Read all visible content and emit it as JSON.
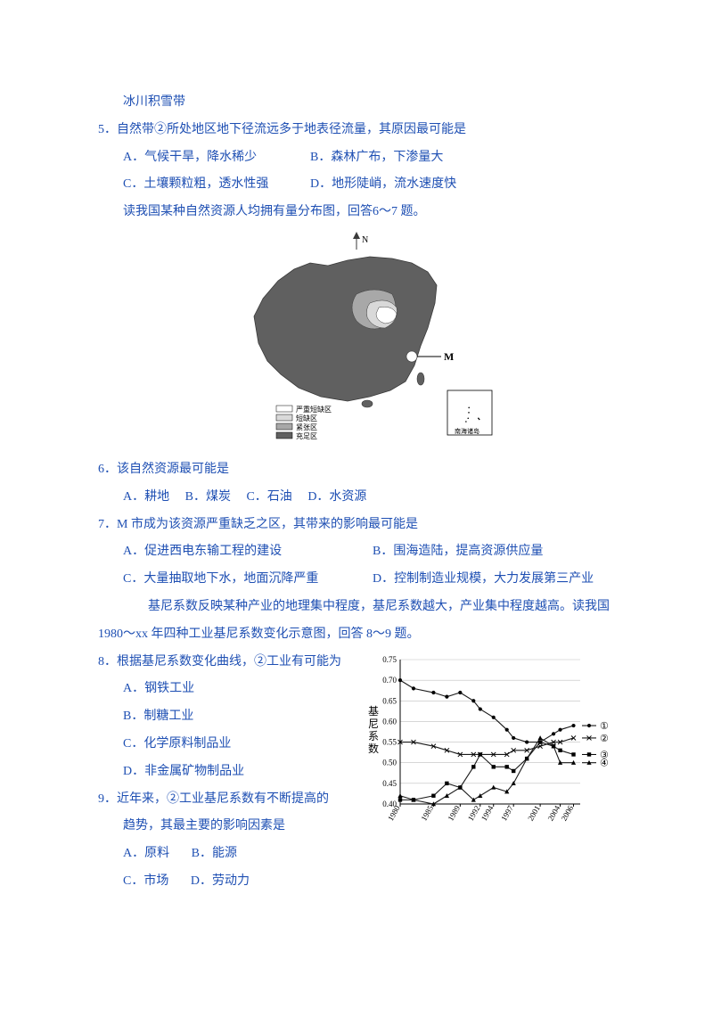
{
  "header_line": "冰川积雪带",
  "q5": {
    "stem": "5．自然带②所处地区地下径流远多于地表径流量，其原因最可能是",
    "optA": "A．气候干旱，降水稀少",
    "optB": "B．森林广布，下渗量大",
    "optC": "C．土壤颗粒粗，透水性强",
    "optD": "D．地形陡峭，流水速度快"
  },
  "intro67": "读我国某种自然资源人均拥有量分布图，回答6～7 题。",
  "map": {
    "compass": "N",
    "label_M": "M",
    "legend": [
      "严重短缺区",
      "短缺区",
      "紧张区",
      "充足区"
    ],
    "inset_label": "南海诸岛",
    "legend_fills": [
      "#ffffff",
      "#d9d9d9",
      "#a8a8a8",
      "#606060"
    ],
    "outline": "#3a3a3a"
  },
  "q6": {
    "stem": "6．该自然资源最可能是",
    "optA": "A．耕地",
    "optB": "B．煤炭",
    "optC": "C．石油",
    "optD": "D．水资源"
  },
  "q7": {
    "stem": "7．M 市成为该资源严重缺乏之区，其带来的影响最可能是",
    "optA": "A．促进西电东输工程的建设",
    "optB": "B．围海造陆，提高资源供应量",
    "optC": "C．大量抽取地下水，地面沉降严重",
    "optD": "D．控制制造业规模，大力发展第三产业"
  },
  "intro89_l1": "基尼系数反映某种产业的地理集中程度，基尼系数越大，产业集中程度越高。读我国",
  "intro89_l2": "1980～xx 年四种工业基尼系数变化示意图，回答 8～9 题。",
  "q8": {
    "stem": "8．根据基尼系数变化曲线，②工业有可能为",
    "optA": "A．钢铁工业",
    "optB": "B．制糖工业",
    "optC": "C．化学原料制品业",
    "optD": "D．非金属矿物制品业"
  },
  "q9": {
    "stem": "9．近年来，②工业基尼系数有不断提高的",
    "sub": "趋势，其最主要的影响因素是",
    "optA": "A．原料",
    "optB": "B．能源",
    "optC": "C．市场",
    "optD": "D．劳动力"
  },
  "chart": {
    "ylabel": "基尼系数",
    "yticks": [
      0.4,
      0.45,
      0.5,
      0.55,
      0.6,
      0.65,
      0.7,
      0.75
    ],
    "xticks": [
      1980,
      1985,
      1989,
      1992,
      1994,
      1997,
      2001,
      2004,
      2006
    ],
    "series_labels": [
      "①",
      "②",
      "③",
      "④"
    ],
    "markers": [
      "●",
      "×",
      "■",
      "▲"
    ],
    "colors": {
      "axis": "#000000",
      "grid": "#bfbfbf",
      "line": "#1a1a1a"
    },
    "series": {
      "s1": [
        [
          1980,
          0.7
        ],
        [
          1982,
          0.68
        ],
        [
          1985,
          0.67
        ],
        [
          1987,
          0.66
        ],
        [
          1989,
          0.67
        ],
        [
          1991,
          0.65
        ],
        [
          1992,
          0.63
        ],
        [
          1994,
          0.61
        ],
        [
          1996,
          0.58
        ],
        [
          1997,
          0.56
        ],
        [
          1999,
          0.55
        ],
        [
          2001,
          0.55
        ],
        [
          2003,
          0.57
        ],
        [
          2004,
          0.58
        ],
        [
          2006,
          0.59
        ]
      ],
      "s2": [
        [
          1980,
          0.55
        ],
        [
          1982,
          0.55
        ],
        [
          1985,
          0.54
        ],
        [
          1987,
          0.53
        ],
        [
          1989,
          0.52
        ],
        [
          1991,
          0.52
        ],
        [
          1992,
          0.52
        ],
        [
          1994,
          0.52
        ],
        [
          1996,
          0.52
        ],
        [
          1997,
          0.53
        ],
        [
          1999,
          0.53
        ],
        [
          2001,
          0.54
        ],
        [
          2003,
          0.55
        ],
        [
          2004,
          0.55
        ],
        [
          2006,
          0.56
        ]
      ],
      "s3": [
        [
          1980,
          0.41
        ],
        [
          1982,
          0.41
        ],
        [
          1985,
          0.42
        ],
        [
          1987,
          0.45
        ],
        [
          1989,
          0.44
        ],
        [
          1991,
          0.49
        ],
        [
          1992,
          0.52
        ],
        [
          1994,
          0.49
        ],
        [
          1996,
          0.49
        ],
        [
          1997,
          0.48
        ],
        [
          1999,
          0.51
        ],
        [
          2001,
          0.55
        ],
        [
          2003,
          0.54
        ],
        [
          2004,
          0.53
        ],
        [
          2006,
          0.52
        ]
      ],
      "s4": [
        [
          1980,
          0.42
        ],
        [
          1982,
          0.41
        ],
        [
          1985,
          0.4
        ],
        [
          1987,
          0.42
        ],
        [
          1989,
          0.44
        ],
        [
          1991,
          0.41
        ],
        [
          1992,
          0.42
        ],
        [
          1994,
          0.44
        ],
        [
          1996,
          0.43
        ],
        [
          1997,
          0.45
        ],
        [
          1999,
          0.51
        ],
        [
          2001,
          0.56
        ],
        [
          2003,
          0.54
        ],
        [
          2004,
          0.5
        ],
        [
          2006,
          0.5
        ]
      ]
    }
  }
}
